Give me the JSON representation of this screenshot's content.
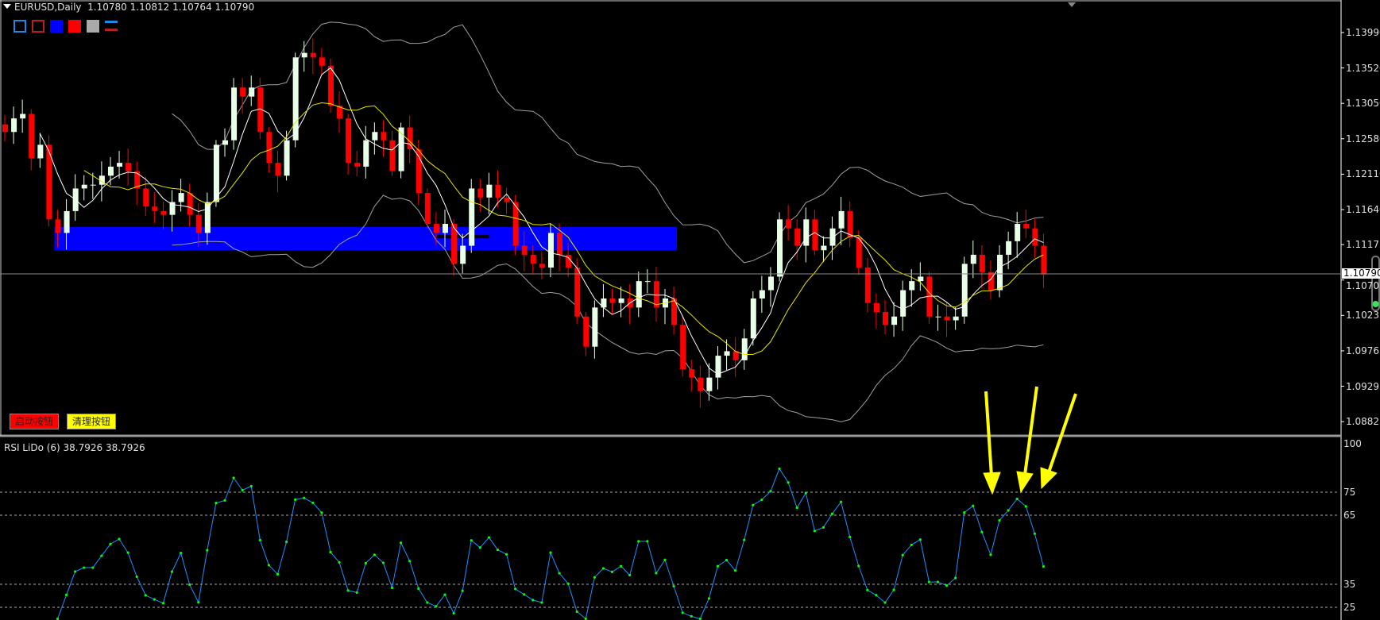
{
  "header": {
    "symbol": "EURUSD,Daily",
    "open": "1.10780",
    "high": "1.10812",
    "low": "1.10764",
    "close": "1.10790"
  },
  "buttons": {
    "start": "启动按钮",
    "clear": "清理按钮"
  },
  "colors": {
    "bull": "#e8ffe8",
    "bear": "#ff0000",
    "ma_fast": "#ffffff",
    "ma_slow": "#e6e600",
    "bands": "#a0a0a0",
    "zone": "#0000ff",
    "rsi_line": "#1e90ff",
    "rsi_points": "#00ff00",
    "arrows": "#ffff00"
  },
  "swatches": [
    "#1e88e5",
    "#b22222",
    "#0000ff",
    "#ff0000",
    "#aaaaaa"
  ],
  "chart_data": [
    {
      "type": "candlestick",
      "symbol": "EURUSD",
      "timeframe": "Daily",
      "ylim": [
        1.0865,
        1.144
      ],
      "yticks": [
        "1.13990",
        "1.13520",
        "1.13050",
        "1.12580",
        "1.12110",
        "1.11640",
        "1.11175",
        "1.10705",
        "1.10235",
        "1.09765",
        "1.09295",
        "1.08825"
      ],
      "current_price": "1.10790",
      "closes": [
        1.1267,
        1.1285,
        1.1291,
        1.1232,
        1.125,
        1.1151,
        1.1133,
        1.1162,
        1.1192,
        1.1197,
        1.1197,
        1.1209,
        1.1221,
        1.1226,
        1.1215,
        1.1192,
        1.1168,
        1.1162,
        1.1157,
        1.1174,
        1.1186,
        1.1157,
        1.1133,
        1.1174,
        1.125,
        1.1256,
        1.1326,
        1.1314,
        1.1326,
        1.1267,
        1.1226,
        1.1209,
        1.1256,
        1.1366,
        1.1372,
        1.1366,
        1.1355,
        1.1302,
        1.1285,
        1.1226,
        1.1221,
        1.1256,
        1.1267,
        1.1256,
        1.1215,
        1.1273,
        1.1244,
        1.1186,
        1.1145,
        1.1133,
        1.1145,
        1.1092,
        1.1116,
        1.1192,
        1.118,
        1.1197,
        1.118,
        1.1174,
        1.1116,
        1.1104,
        1.1092,
        1.1087,
        1.1133,
        1.1104,
        1.1087,
        1.1022,
        1.0982,
        1.1034,
        1.1046,
        1.104,
        1.1046,
        1.1034,
        1.1069,
        1.1069,
        1.1034,
        1.1046,
        1.1011,
        1.0952,
        1.0941,
        1.0923,
        1.0941,
        1.097,
        1.0976,
        1.0964,
        1.0993,
        1.1046,
        1.1057,
        1.1075,
        1.1151,
        1.1139,
        1.1116,
        1.1151,
        1.111,
        1.1116,
        1.1139,
        1.1162,
        1.1127,
        1.1087,
        1.104,
        1.1028,
        1.1011,
        1.1022,
        1.1057,
        1.1069,
        1.1075,
        1.1022,
        1.1022,
        1.1017,
        1.1022,
        1.1092,
        1.1104,
        1.1081,
        1.1057,
        1.1104,
        1.1122,
        1.1145,
        1.1139,
        1.1116,
        1.1079
      ],
      "indicators": {
        "sma_fast": 5,
        "sma_slow": 10,
        "bollinger_period": 20,
        "bollinger_dev": 2
      },
      "zone": {
        "from": 1.111,
        "to": 1.1141,
        "start_bar": 6,
        "end_bar": 76
      },
      "zone_inner": {
        "price": 1.1128,
        "start_bar": 49,
        "end_bar": 55
      }
    },
    {
      "type": "line",
      "title": "RSI LiDo (6) 38.7926 38.7926",
      "period": 6,
      "ylim": [
        20,
        100
      ],
      "levels": [
        75,
        65,
        35,
        25
      ],
      "yticks": [
        "100",
        "75",
        "65",
        "35",
        "25"
      ]
    }
  ]
}
